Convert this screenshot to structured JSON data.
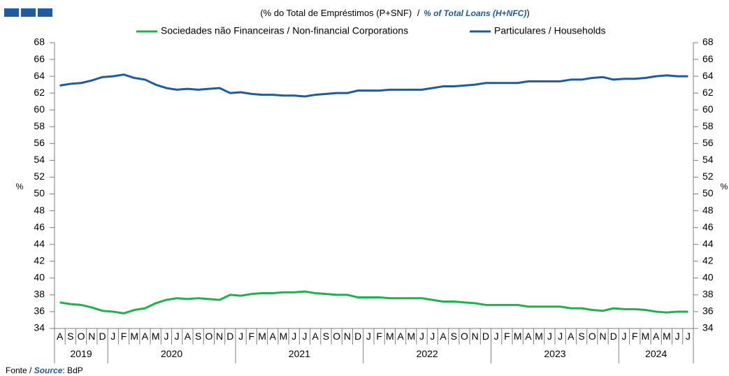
{
  "chart_data": {
    "type": "line",
    "title_pt": "(% do Total de Empréstimos (P+SNF)",
    "title_sep": "/",
    "title_en": "% of Total Loans (H+NFC)",
    "title_close": ")",
    "y_label": "%",
    "y2_label": "%",
    "source_label": "Fonte /",
    "source_en": "Source",
    "source_value": ": BdP",
    "category_groups": [
      {
        "label": "2019",
        "categories": [
          "A",
          "S",
          "O",
          "N",
          "D"
        ]
      },
      {
        "label": "2020",
        "categories": [
          "J",
          "F",
          "M",
          "A",
          "M",
          "J",
          "J",
          "A",
          "S",
          "O",
          "N",
          "D"
        ]
      },
      {
        "label": "2021",
        "categories": [
          "J",
          "F",
          "M",
          "A",
          "M",
          "J",
          "J",
          "A",
          "S",
          "O",
          "N",
          "D"
        ]
      },
      {
        "label": "2022",
        "categories": [
          "J",
          "F",
          "M",
          "A",
          "M",
          "J",
          "J",
          "A",
          "S",
          "O",
          "N",
          "D"
        ]
      },
      {
        "label": "2023",
        "categories": [
          "J",
          "F",
          "M",
          "A",
          "M",
          "J",
          "J",
          "A",
          "S",
          "O",
          "N",
          "D"
        ]
      },
      {
        "label": "2024",
        "categories": [
          "J",
          "F",
          "M",
          "A",
          "M",
          "J",
          "J"
        ]
      }
    ],
    "series": [
      {
        "name": "Sociedades não Financeiras / Non-financial Corporations",
        "color": "#21b04b",
        "values": [
          37.1,
          36.9,
          36.8,
          36.5,
          36.1,
          36.0,
          35.8,
          36.2,
          36.4,
          37.0,
          37.4,
          37.6,
          37.5,
          37.6,
          37.5,
          37.4,
          38.0,
          37.9,
          38.1,
          38.2,
          38.2,
          38.3,
          38.3,
          38.4,
          38.2,
          38.1,
          38.0,
          38.0,
          37.7,
          37.7,
          37.7,
          37.6,
          37.6,
          37.6,
          37.6,
          37.4,
          37.2,
          37.2,
          37.1,
          37.0,
          36.8,
          36.8,
          36.8,
          36.8,
          36.6,
          36.6,
          36.6,
          36.6,
          36.4,
          36.4,
          36.2,
          36.1,
          36.4,
          36.3,
          36.3,
          36.2,
          36.0,
          35.9,
          36.0,
          36.0
        ]
      },
      {
        "name": "Particulares / Households",
        "color": "#1f5b9e",
        "values": [
          62.9,
          63.1,
          63.2,
          63.5,
          63.9,
          64.0,
          64.2,
          63.8,
          63.6,
          63.0,
          62.6,
          62.4,
          62.5,
          62.4,
          62.5,
          62.6,
          62.0,
          62.1,
          61.9,
          61.8,
          61.8,
          61.7,
          61.7,
          61.6,
          61.8,
          61.9,
          62.0,
          62.0,
          62.3,
          62.3,
          62.3,
          62.4,
          62.4,
          62.4,
          62.4,
          62.6,
          62.8,
          62.8,
          62.9,
          63.0,
          63.2,
          63.2,
          63.2,
          63.2,
          63.4,
          63.4,
          63.4,
          63.4,
          63.6,
          63.6,
          63.8,
          63.9,
          63.6,
          63.7,
          63.7,
          63.8,
          64.0,
          64.1,
          64.0,
          64.0
        ]
      }
    ],
    "ylim": [
      34,
      68
    ],
    "yticks": [
      34,
      36,
      38,
      40,
      42,
      44,
      46,
      48,
      50,
      52,
      54,
      56,
      58,
      60,
      62,
      64,
      66,
      68
    ],
    "y2lim": [
      34,
      68
    ],
    "y2ticks": [
      34,
      36,
      38,
      40,
      42,
      44,
      46,
      48,
      50,
      52,
      54,
      56,
      58,
      60,
      62,
      64,
      66,
      68
    ],
    "grid": false
  }
}
